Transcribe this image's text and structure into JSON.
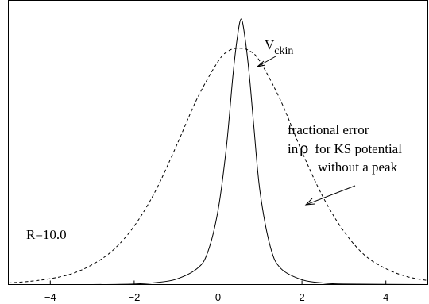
{
  "chart_data": {
    "type": "line",
    "title": "",
    "xlabel": "",
    "ylabel": "",
    "xlim": [
      -5,
      5
    ],
    "ylim": [
      0,
      1.07
    ],
    "xticks": [
      -4,
      -2,
      0,
      2,
      4
    ],
    "grid": false,
    "series": [
      {
        "id": "vckin",
        "style": "solid",
        "x": [
          -5.0,
          -3.0,
          -2.0,
          -1.5,
          -1.0,
          -0.5,
          -0.25,
          0.0,
          0.2,
          0.35,
          0.45,
          0.55,
          0.65,
          0.75,
          0.85,
          1.0,
          1.25,
          1.5,
          2.0,
          2.5,
          3.0,
          5.0
        ],
        "y": [
          0.0,
          0.0,
          0.002,
          0.007,
          0.02,
          0.06,
          0.12,
          0.28,
          0.52,
          0.78,
          0.92,
          1.0,
          0.92,
          0.78,
          0.6,
          0.35,
          0.14,
          0.06,
          0.018,
          0.006,
          0.002,
          0.0
        ]
      },
      {
        "id": "fractional_error",
        "style": "dashed",
        "x": [
          -5.0,
          -4.5,
          -4.0,
          -3.5,
          -3.0,
          -2.5,
          -2.0,
          -1.5,
          -1.0,
          -0.5,
          0.0,
          0.25,
          0.5,
          0.75,
          1.0,
          1.5,
          2.0,
          2.5,
          3.0,
          3.5,
          4.0,
          4.5,
          5.0
        ],
        "y": [
          0.006,
          0.012,
          0.022,
          0.04,
          0.075,
          0.13,
          0.22,
          0.35,
          0.52,
          0.7,
          0.84,
          0.88,
          0.89,
          0.88,
          0.84,
          0.69,
          0.5,
          0.33,
          0.2,
          0.11,
          0.06,
          0.03,
          0.015
        ]
      }
    ],
    "annotations": {
      "vckin_main": "V",
      "vckin_sub": "ckin",
      "error_line1": "fractional error",
      "error_line2_pre": "in",
      "error_line2_rho": "ρ",
      "error_line2_post": "for KS potential",
      "error_line3": "without a peak",
      "r_label": "R=10.0"
    }
  }
}
